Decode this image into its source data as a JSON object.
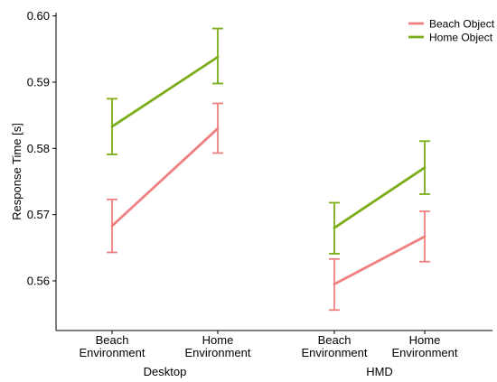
{
  "chart_data": {
    "type": "line",
    "ylabel": "Response Time [s]",
    "ylim": [
      0.5525,
      0.6005
    ],
    "yticks": [
      0.56,
      0.57,
      0.58,
      0.59,
      0.6
    ],
    "ytick_labels": [
      "0.56",
      "0.57",
      "0.58",
      "0.59",
      "0.60"
    ],
    "groups": [
      {
        "label": "Desktop",
        "categories": [
          {
            "line1": "Beach",
            "line2": "Environment"
          },
          {
            "line1": "Home",
            "line2": "Environment"
          }
        ]
      },
      {
        "label": "HMD",
        "categories": [
          {
            "line1": "Beach",
            "line2": "Environment"
          },
          {
            "line1": "Home",
            "line2": "Environment"
          }
        ]
      }
    ],
    "legend_position": "top-right",
    "series": [
      {
        "name": "Beach Object",
        "color": "#f08080",
        "groups": [
          {
            "values": [
              0.5683,
              0.583
            ],
            "errors_low": [
              0.5643,
              0.5793
            ],
            "errors_high": [
              0.5723,
              0.5868
            ]
          },
          {
            "values": [
              0.5595,
              0.5667
            ],
            "errors_low": [
              0.5556,
              0.5629
            ],
            "errors_high": [
              0.5633,
              0.5705
            ]
          }
        ]
      },
      {
        "name": "Home Object",
        "color": "#7aad17",
        "groups": [
          {
            "values": [
              0.5833,
              0.5938
            ],
            "errors_low": [
              0.5791,
              0.5898
            ],
            "errors_high": [
              0.5875,
              0.5981
            ]
          },
          {
            "values": [
              0.568,
              0.5771
            ],
            "errors_low": [
              0.5641,
              0.5731
            ],
            "errors_high": [
              0.5718,
              0.5811
            ]
          }
        ]
      }
    ]
  }
}
